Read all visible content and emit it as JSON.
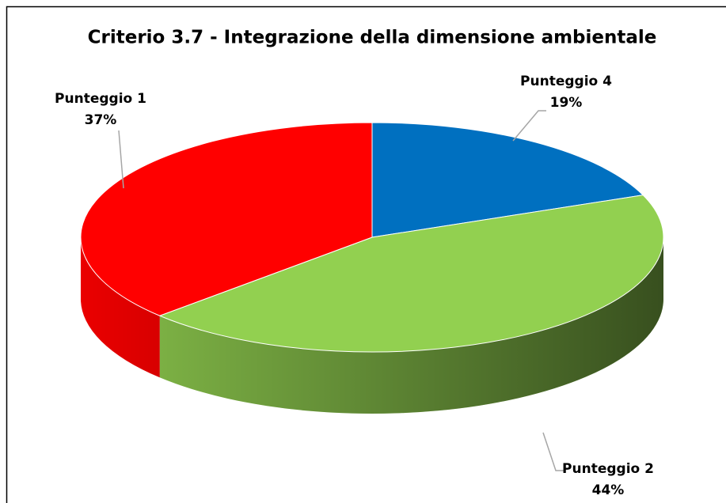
{
  "chart_data": {
    "type": "pie",
    "title": "Criterio 3.7 - Integrazione della dimensione ambientale",
    "categories": [
      "Punteggio 4",
      "Punteggio 2",
      "Punteggio 1"
    ],
    "values": [
      19,
      44,
      37
    ],
    "value_labels": [
      "19%",
      "44%",
      "37%"
    ],
    "colors": [
      "#0070c0",
      "#92d050",
      "#ff0000"
    ]
  }
}
